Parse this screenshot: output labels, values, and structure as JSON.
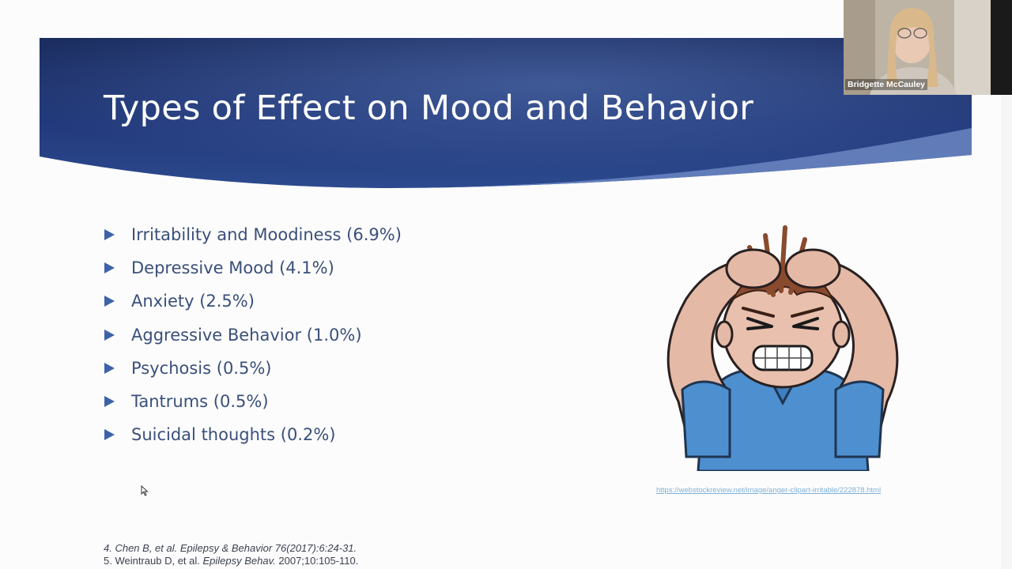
{
  "slide": {
    "title": "Types of Effect on Mood and Behavior",
    "bullets": [
      "Irritability and Moodiness (6.9%)",
      "Depressive Mood (4.1%)",
      "Anxiety (2.5%)",
      "Aggressive Behavior (1.0%)",
      "Psychosis (0.5%)",
      "Tantrums (0.5%)",
      "Suicidal thoughts (0.2%)"
    ],
    "image_source_link": "https://webstockreview.net/image/anger-clipart-irritable/222878.html",
    "citations": [
      {
        "prefix": "4. Chen B, et al. ",
        "journal": "Epilepsy & Behavior 76(2017):6:24-31.",
        "suffix": ""
      },
      {
        "prefix": "5. Weintraub D, et al. ",
        "journal": "Epilepsy Behav.",
        "suffix": " 2007;10:105-110."
      }
    ]
  },
  "webcam": {
    "participant_name": "Bridgette McCauley"
  },
  "colors": {
    "banner_dark": "#1c2f63",
    "banner_light": "#3c5a99",
    "bullet_arrow": "#3d62a8",
    "bullet_text": "#3a4f7a",
    "link": "#7fb1d8"
  },
  "icons": {
    "bullet": "triangle-right-icon",
    "cursor": "mouse-pointer-icon",
    "clipart": "frustrated-boy-illustration"
  }
}
